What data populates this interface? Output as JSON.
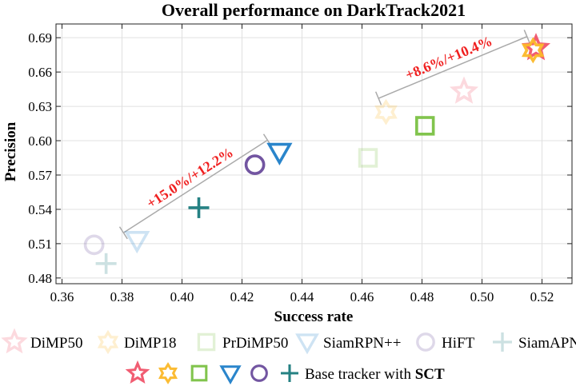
{
  "chart_data": {
    "type": "scatter",
    "title": "Overall performance on DarkTrack2021",
    "xlabel": "Success rate",
    "ylabel": "Precision",
    "xlim": [
      0.358,
      0.53
    ],
    "ylim": [
      0.475,
      0.702
    ],
    "xticks": [
      "0.36",
      "0.38",
      "0.40",
      "0.42",
      "0.44",
      "0.46",
      "0.48",
      "0.50",
      "0.52"
    ],
    "yticks": [
      "0.48",
      "0.51",
      "0.54",
      "0.57",
      "0.60",
      "0.63",
      "0.66",
      "0.69"
    ],
    "grid": true,
    "series": [
      {
        "name": "DiMP50",
        "marker": "star5",
        "color": "#f0546a",
        "base": [
          0.494,
          0.643
        ],
        "sct": [
          0.518,
          0.681
        ]
      },
      {
        "name": "DiMP18",
        "marker": "star6",
        "color": "#fbb829",
        "base": [
          0.468,
          0.625
        ],
        "sct": [
          0.517,
          0.679
        ]
      },
      {
        "name": "PrDiMP50",
        "marker": "square",
        "color": "#7ac143",
        "base": [
          0.462,
          0.585
        ],
        "sct": [
          0.481,
          0.613
        ]
      },
      {
        "name": "SiamRPN++",
        "marker": "triangle-down",
        "color": "#1f7ec8",
        "base": [
          0.385,
          0.513
        ],
        "sct": [
          0.4325,
          0.59
        ]
      },
      {
        "name": "HiFT",
        "marker": "circle",
        "color": "#6a4c9c",
        "base": [
          0.3707,
          0.509
        ],
        "sct": [
          0.4243,
          0.579
        ]
      },
      {
        "name": "SiamAPN++",
        "marker": "plus",
        "color": "#1a7b7d",
        "base": [
          0.3747,
          0.4926
        ],
        "sct": [
          0.4056,
          0.5414
        ]
      }
    ],
    "annotations": [
      {
        "text": "+15.0%/+12.2%",
        "from": [
          0.3805,
          0.5195
        ],
        "to": [
          0.4285,
          0.6005
        ]
      },
      {
        "text": "+8.6%/+10.4%",
        "from": [
          0.4655,
          0.637
        ],
        "to": [
          0.515,
          0.691
        ]
      }
    ],
    "legend_sct_label_prefix": "Base tracker with ",
    "legend_sct_label_bold": "SCT",
    "legend_placement": "bottom"
  }
}
